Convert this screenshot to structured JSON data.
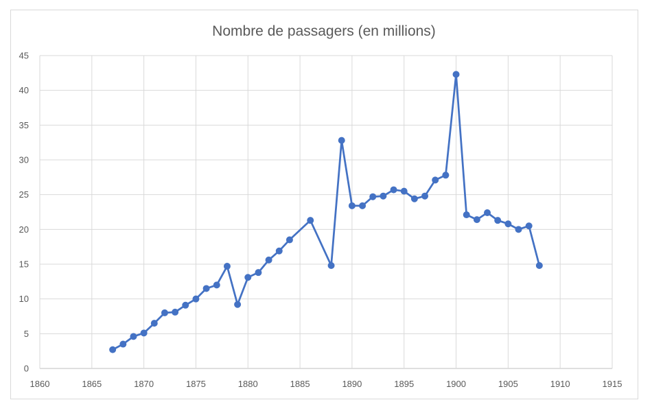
{
  "chart_data": {
    "type": "line",
    "title": "Nombre de passagers (en millions)",
    "xlabel": "",
    "ylabel": "",
    "xlim": [
      1860,
      1915
    ],
    "ylim": [
      0,
      45
    ],
    "x_ticks": [
      1860,
      1865,
      1870,
      1875,
      1880,
      1885,
      1890,
      1895,
      1900,
      1905,
      1910,
      1915
    ],
    "y_ticks": [
      0,
      5,
      10,
      15,
      20,
      25,
      30,
      35,
      40,
      45
    ],
    "grid": true,
    "legend": "none",
    "series": [
      {
        "color": "#4472c4",
        "x": [
          1867,
          1868,
          1869,
          1870,
          1871,
          1872,
          1873,
          1874,
          1875,
          1876,
          1877,
          1878,
          1879,
          1880,
          1881,
          1882,
          1883,
          1884,
          1886,
          1888,
          1889,
          1890,
          1891,
          1892,
          1893,
          1894,
          1895,
          1896,
          1897,
          1898,
          1899,
          1900,
          1901,
          1902,
          1903,
          1904,
          1905,
          1906,
          1907,
          1908
        ],
        "y": [
          2.7,
          3.5,
          4.6,
          5.1,
          6.5,
          8.0,
          8.1,
          9.1,
          10.0,
          11.5,
          12.0,
          14.7,
          9.2,
          13.1,
          13.8,
          15.6,
          16.9,
          18.5,
          21.3,
          14.8,
          32.8,
          23.4,
          23.4,
          24.7,
          24.8,
          25.7,
          25.5,
          24.4,
          24.8,
          27.1,
          27.8,
          42.3,
          22.1,
          21.4,
          22.4,
          21.3,
          20.8,
          20.0,
          20.5,
          14.8
        ]
      }
    ]
  }
}
